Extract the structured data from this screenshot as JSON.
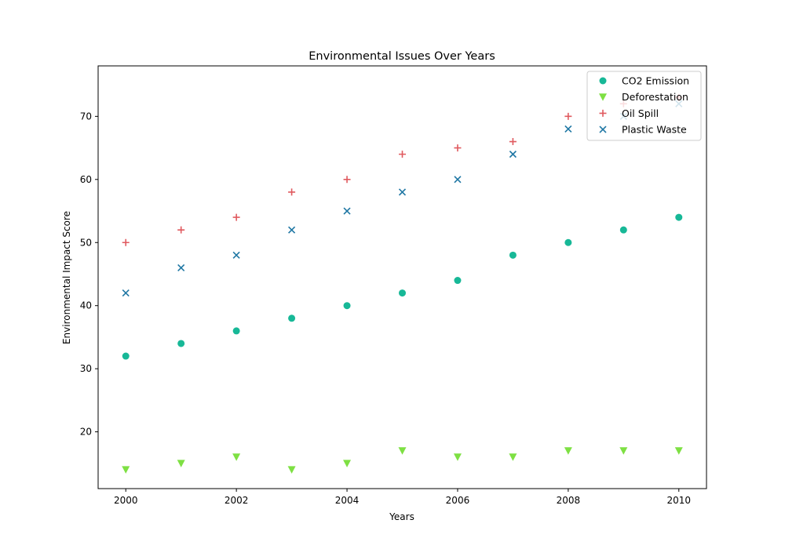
{
  "chart_data": {
    "type": "scatter",
    "title": "Environmental Issues Over Years",
    "xlabel": "Years",
    "ylabel": "Environmental Impact Score",
    "xlim": [
      1999.5,
      2010.5
    ],
    "ylim": [
      11,
      78
    ],
    "xticks": [
      2000,
      2002,
      2004,
      2006,
      2008,
      2010
    ],
    "yticks": [
      20,
      30,
      40,
      50,
      60,
      70
    ],
    "x": [
      2000,
      2001,
      2002,
      2003,
      2004,
      2005,
      2006,
      2007,
      2008,
      2009,
      2010
    ],
    "grid": false,
    "legend_position": "top-right",
    "series": [
      {
        "name": "CO2 Emission",
        "marker": "circle",
        "color": "#17b897",
        "values": [
          32,
          34,
          36,
          38,
          40,
          42,
          44,
          48,
          50,
          52,
          54
        ]
      },
      {
        "name": "Deforestation",
        "marker": "triangle-down",
        "color": "#7ee043",
        "values": [
          14,
          15,
          16,
          14,
          15,
          17,
          16,
          16,
          17,
          17,
          17
        ]
      },
      {
        "name": "Oil Spill",
        "marker": "plus",
        "color": "#e05a5f",
        "values": [
          50,
          52,
          54,
          58,
          60,
          64,
          65,
          66,
          70,
          72,
          73
        ]
      },
      {
        "name": "Plastic Waste",
        "marker": "x",
        "color": "#1f77a4",
        "values": [
          42,
          46,
          48,
          52,
          55,
          58,
          60,
          64,
          68,
          70,
          72
        ]
      }
    ]
  }
}
